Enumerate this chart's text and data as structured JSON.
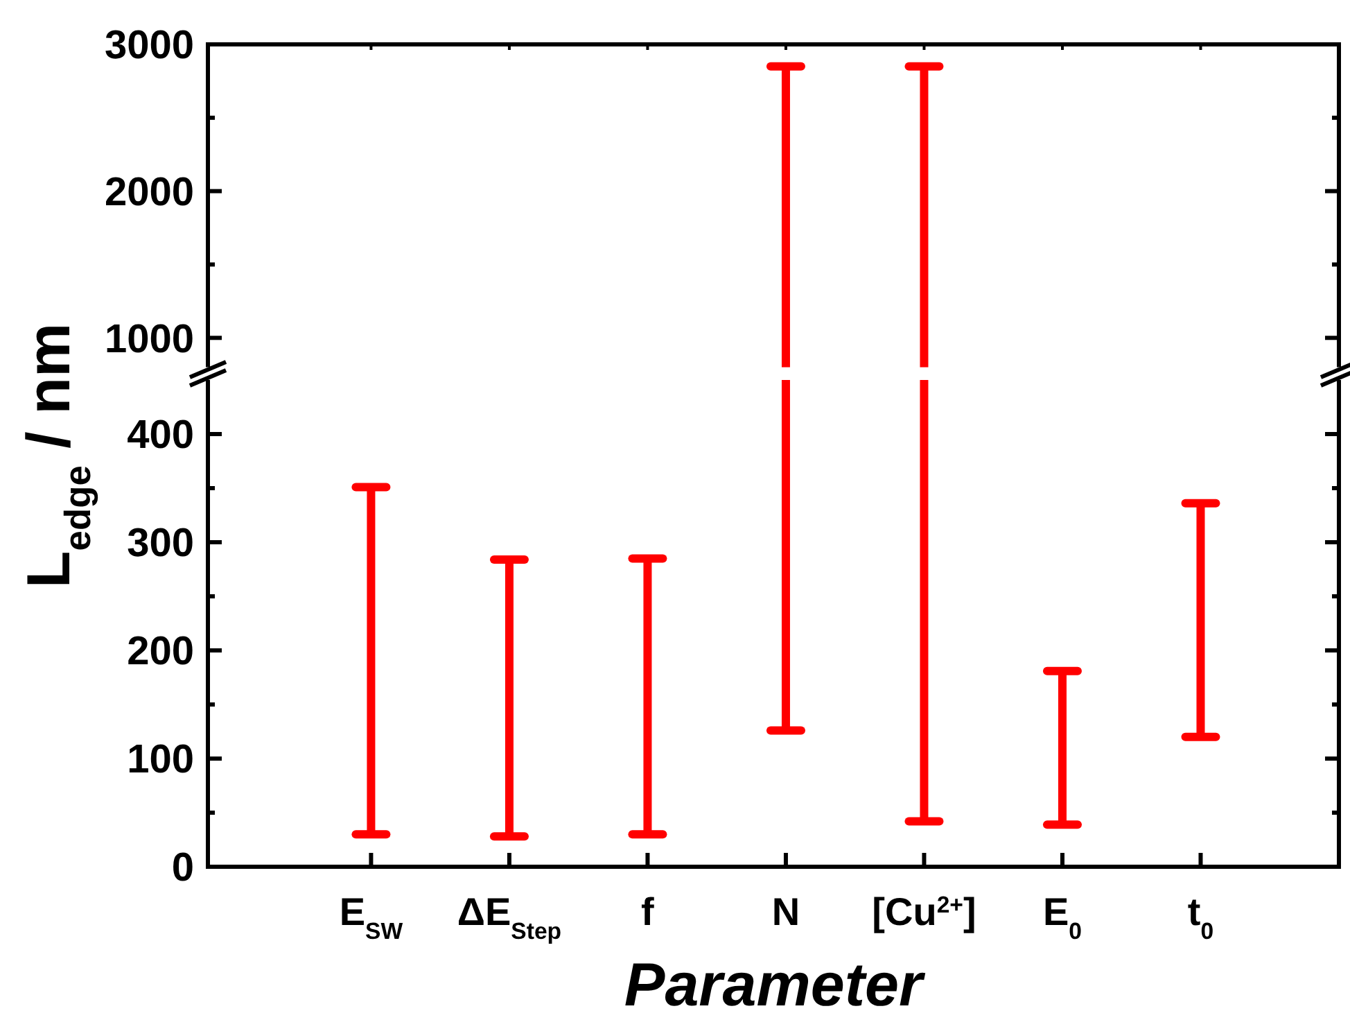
{
  "chart_data": [
    {
      "type": "bar",
      "categories": [
        null,
        null,
        null,
        null,
        null,
        null,
        null
      ],
      "base": [
        null,
        null,
        null,
        800,
        800,
        null,
        null
      ],
      "values": [
        null,
        null,
        null,
        2050,
        2050,
        null,
        null
      ],
      "color": "#ff0000",
      "ylim": [
        800,
        3000
      ],
      "yticks": [
        1000,
        {
          "value": 1500,
          "label": null
        },
        2000,
        {
          "value": 2500,
          "label": null
        },
        3000
      ],
      "tick_labels": "y"
    },
    {
      "type": "bar",
      "categories": [
        "E$_{SW}$",
        "ΔE$_{Step}$",
        "f",
        "N",
        "[Cu$^{2+}$]",
        "E$_{0}$",
        "t$_{0}$"
      ],
      "base": [
        30,
        28,
        30,
        126,
        42,
        39,
        120
      ],
      "values": [
        321,
        256,
        255,
        324,
        408,
        142,
        216
      ],
      "color": "#ff0000",
      "ylim": [
        0,
        450
      ],
      "yticks": [
        0,
        {
          "value": 50,
          "label": null
        },
        100,
        {
          "value": 150,
          "label": null
        },
        200,
        {
          "value": 250,
          "label": null
        },
        300,
        {
          "value": 350,
          "label": null
        },
        400
      ],
      "xlabel": "Parameter",
      "ylabel": "L$_{edge}$ / nm"
    }
  ]
}
